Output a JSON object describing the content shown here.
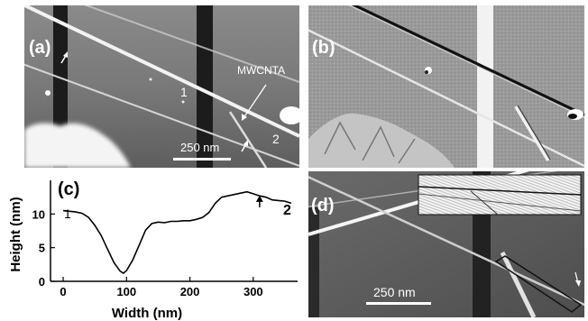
{
  "panel_a": {
    "label": "(a)",
    "annotation": "MWCNTA",
    "point_1": "1",
    "point_2": "2",
    "scale_bar": "250 nm"
  },
  "panel_b": {
    "label": "(b)"
  },
  "panel_c": {
    "label": "(c)",
    "point_1": "1",
    "point_2": "2",
    "chart_data": {
      "type": "line",
      "xlabel": "Width (nm)",
      "ylabel": "Height (nm)",
      "xlim": [
        -20,
        370
      ],
      "ylim": [
        0,
        15
      ],
      "x_ticks": [
        0,
        100,
        200,
        300
      ],
      "y_ticks": [
        0,
        5,
        10
      ],
      "grid": false,
      "series": [
        {
          "x": [
            0,
            10,
            20,
            30,
            40,
            50,
            60,
            70,
            80,
            90,
            95,
            100,
            110,
            120,
            130,
            140,
            150,
            160,
            170,
            180,
            190,
            200,
            210,
            220,
            230,
            240,
            250,
            260,
            270,
            280,
            290,
            300,
            310,
            320,
            330,
            340,
            350,
            360
          ],
          "values": [
            10.5,
            10.4,
            10.3,
            10.1,
            9.5,
            8.3,
            6.8,
            4.8,
            2.8,
            1.5,
            1.2,
            1.6,
            3.2,
            5.4,
            7.6,
            8.6,
            8.8,
            8.7,
            8.9,
            8.9,
            9.0,
            9.0,
            9.2,
            9.5,
            10.2,
            11.6,
            12.5,
            12.7,
            12.9,
            13.1,
            13.3,
            13.0,
            12.7,
            12.5,
            12.1,
            12.0,
            11.9,
            11.6
          ]
        }
      ]
    }
  },
  "panel_d": {
    "label": "(d)",
    "scale_bar": "250 nm"
  }
}
